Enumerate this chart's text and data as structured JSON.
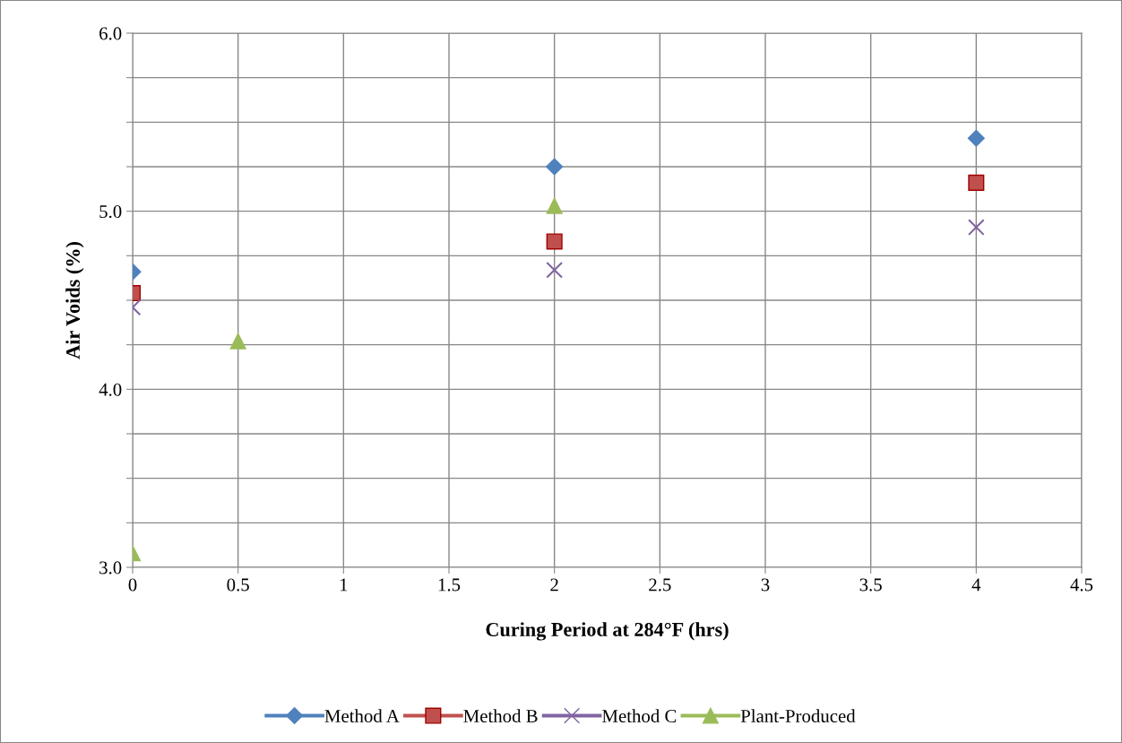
{
  "chart_data": {
    "type": "scatter",
    "xlabel": "Curing Period at 284°F (hrs)",
    "ylabel": "Air Voids (%)",
    "xlim": [
      0,
      4.5
    ],
    "xticks": [
      0,
      0.5,
      1,
      1.5,
      2,
      2.5,
      3,
      3.5,
      4,
      4.5
    ],
    "ylim": [
      3.0,
      6.0
    ],
    "yticks": [
      {
        "value": 3.0,
        "label": "3.0"
      },
      {
        "value": 3.25,
        "label": null
      },
      {
        "value": 3.5,
        "label": null
      },
      {
        "value": 3.75,
        "label": null
      },
      {
        "value": 4.0,
        "label": "4.0"
      },
      {
        "value": 4.25,
        "label": null
      },
      {
        "value": 4.5,
        "label": null
      },
      {
        "value": 4.75,
        "label": null
      },
      {
        "value": 5.0,
        "label": "5.0"
      },
      {
        "value": 5.25,
        "label": null
      },
      {
        "value": 5.5,
        "label": null
      },
      {
        "value": 5.75,
        "label": null
      },
      {
        "value": 6.0,
        "label": "6.0"
      }
    ],
    "grid": true,
    "legend": "bottom",
    "series": [
      {
        "name": "Method A",
        "color": "#4f81bd",
        "marker": "diamond",
        "x": [
          0,
          2,
          4
        ],
        "values": [
          4.66,
          5.25,
          5.41
        ]
      },
      {
        "name": "Method B",
        "color": "#c0504d",
        "marker": "square",
        "x": [
          0,
          2,
          4
        ],
        "values": [
          4.54,
          4.83,
          5.16
        ]
      },
      {
        "name": "Method C",
        "color": "#8064a2",
        "marker": "cross",
        "x": [
          0,
          2,
          4
        ],
        "values": [
          4.46,
          4.67,
          4.91
        ]
      },
      {
        "name": "Plant-Produced",
        "color": "#9bbb59",
        "marker": "triangle",
        "x": [
          0,
          0.5,
          2
        ],
        "values": [
          3.08,
          4.27,
          5.03
        ]
      }
    ]
  }
}
